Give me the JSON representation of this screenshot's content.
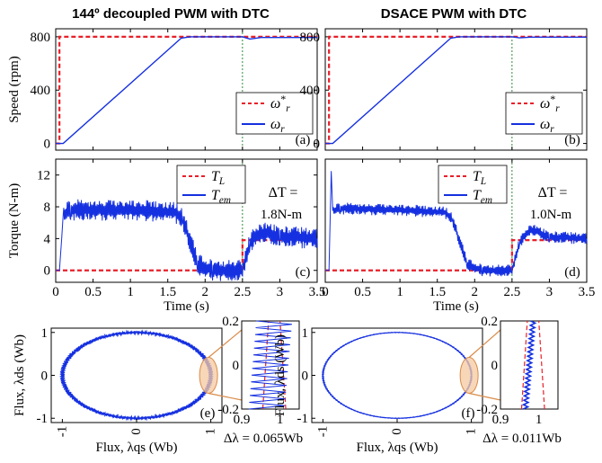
{
  "figure": {
    "left_title": "144º decoupled PWM with DTC",
    "right_title": "DSACE PWM with DTC"
  },
  "chart_data": [
    {
      "id": "speed-left",
      "panel_label": "(a)",
      "type": "line",
      "ylabel": "Speed (rpm)",
      "xlim": [
        0,
        3.5
      ],
      "ylim": [
        -50,
        860
      ],
      "yticks": [
        "0",
        "400",
        "800"
      ],
      "ytick_values": [
        0,
        400,
        800
      ],
      "legend": {
        "position": "bottom-right",
        "entries": [
          "ω*r",
          "ωr"
        ]
      },
      "series": [
        {
          "name": "ω*r",
          "style": "dashed",
          "color": "#e8202a",
          "x": [
            0,
            0.05,
            0.05,
            3.5
          ],
          "y": [
            0,
            0,
            800,
            800
          ]
        },
        {
          "name": "ωr",
          "style": "solid",
          "color": "#1530e0",
          "x": [
            0,
            0.1,
            1.68,
            1.8,
            2.5,
            2.6,
            2.75,
            3.5
          ],
          "y": [
            0,
            0,
            790,
            800,
            800,
            783,
            795,
            795
          ]
        }
      ],
      "vline_x": 2.5
    },
    {
      "id": "speed-right",
      "panel_label": "(b)",
      "type": "line",
      "ylabel": "",
      "xlim": [
        0,
        3.5
      ],
      "ylim": [
        -50,
        860
      ],
      "yticks": [
        "0",
        "400",
        "800"
      ],
      "ytick_values": [
        0,
        400,
        800
      ],
      "legend": {
        "position": "bottom-right",
        "entries": [
          "ω*r",
          "ωr"
        ]
      },
      "series": [
        {
          "name": "ω*r",
          "style": "dashed",
          "color": "#e8202a",
          "x": [
            0,
            0.05,
            0.05,
            3.5
          ],
          "y": [
            0,
            0,
            800,
            800
          ]
        },
        {
          "name": "ωr",
          "style": "solid",
          "color": "#1530e0",
          "x": [
            0,
            0.1,
            1.68,
            1.8,
            2.5,
            2.6,
            2.75,
            3.5
          ],
          "y": [
            0,
            0,
            790,
            800,
            800,
            792,
            797,
            797
          ]
        }
      ],
      "vline_x": 2.5
    },
    {
      "id": "torque-left",
      "panel_label": "(c)",
      "type": "line",
      "ylabel": "Torque (N-m)",
      "xlabel": "Time (s)",
      "xlim": [
        0,
        3.5
      ],
      "ylim": [
        -1.5,
        14
      ],
      "xticks": [
        "0",
        "0.5",
        "1",
        "1.5",
        "2",
        "2.5",
        "3",
        "3.5"
      ],
      "xtick_values": [
        0,
        0.5,
        1,
        1.5,
        2,
        2.5,
        3,
        3.5
      ],
      "yticks": [
        "0",
        "4",
        "8",
        "12"
      ],
      "ytick_values": [
        0,
        4,
        8,
        12
      ],
      "legend": {
        "position": "top-center",
        "entries": [
          "TL",
          "Tem"
        ]
      },
      "annotation": [
        "ΔT =",
        "1.8N-m"
      ],
      "series": [
        {
          "name": "TL",
          "style": "dashed",
          "color": "#e8202a",
          "x": [
            0,
            2.5,
            2.5,
            3.5
          ],
          "y": [
            0,
            0,
            3.8,
            3.8
          ]
        },
        {
          "name": "Tem",
          "style": "solid",
          "color": "#1530e0",
          "x": [
            0,
            0.05,
            0.08,
            0.1,
            0.2,
            1.0,
            1.6,
            1.7,
            1.9,
            2.1,
            2.5,
            2.6,
            2.75,
            3.0,
            3.5
          ],
          "y": [
            0,
            0,
            4,
            7.0,
            7.6,
            7.6,
            7.3,
            6.5,
            0.8,
            0,
            0,
            3.5,
            4.8,
            4.3,
            4.0
          ],
          "band": 1.8
        }
      ],
      "vline_x": 2.5
    },
    {
      "id": "torque-right",
      "panel_label": "(d)",
      "type": "line",
      "ylabel": "",
      "xlabel": "Time (s)",
      "xlim": [
        0,
        3.5
      ],
      "ylim": [
        -1.5,
        14
      ],
      "xticks": [
        "0",
        "0.5",
        "1",
        "1.5",
        "2",
        "2.5",
        "3",
        "3.5"
      ],
      "xtick_values": [
        0,
        0.5,
        1,
        1.5,
        2,
        2.5,
        3,
        3.5
      ],
      "yticks": [],
      "ytick_values": [],
      "legend": {
        "position": "top-center",
        "entries": [
          "TL",
          "Tem"
        ]
      },
      "annotation": [
        "ΔT =",
        "1.0N-m"
      ],
      "series": [
        {
          "name": "TL",
          "style": "dashed",
          "color": "#e8202a",
          "x": [
            0,
            2.5,
            2.5,
            3.5
          ],
          "y": [
            0,
            0,
            3.8,
            3.8
          ]
        },
        {
          "name": "Tem",
          "style": "solid",
          "color": "#1530e0",
          "x": [
            0,
            0.05,
            0.08,
            0.1,
            0.2,
            1.0,
            1.6,
            1.7,
            1.9,
            2.1,
            2.5,
            2.6,
            2.75,
            3.0,
            3.5
          ],
          "y": [
            0,
            0,
            12.5,
            7.5,
            7.8,
            7.6,
            7.3,
            6.5,
            0.8,
            0,
            0,
            3.5,
            5.2,
            4.2,
            4.0
          ],
          "band": 1.0
        }
      ],
      "vline_x": 2.5
    },
    {
      "id": "flux-left",
      "panel_label": "(e)",
      "type": "line",
      "xlabel": "Flux, λqs (Wb)",
      "ylabel": "Flux, λds (Wb)",
      "xlim": [
        -1.15,
        1.15
      ],
      "ylim": [
        -1.1,
        1.1
      ],
      "xticks": [
        "-1",
        "0",
        "1"
      ],
      "yticks": [
        "-1",
        "0",
        "1"
      ],
      "radius": 1.0,
      "ripple": 0.065,
      "zoom": {
        "xlim": [
          0.9,
          1.05
        ],
        "ylim": [
          -0.2,
          0.2
        ],
        "xticks": [
          "0.9",
          "1"
        ],
        "yticks": [
          "0.2",
          "0",
          "-0.2"
        ]
      },
      "caption": "Δλ = 0.065Wb"
    },
    {
      "id": "flux-right",
      "panel_label": "(f)",
      "type": "line",
      "xlabel": "Flux, λqs (Wb)",
      "ylabel": "Flux, λds (Wb)",
      "xlim": [
        -1.15,
        1.15
      ],
      "ylim": [
        -1.1,
        1.1
      ],
      "xticks": [
        "-1",
        "0",
        "1"
      ],
      "yticks": [
        "-1",
        "0",
        "1"
      ],
      "radius": 1.0,
      "ripple": 0.011,
      "zoom": {
        "xlim": [
          0.9,
          1.05
        ],
        "ylim": [
          -0.2,
          0.2
        ],
        "xticks": [
          "0.9",
          "1"
        ],
        "yticks": [
          "0.2",
          "0",
          "-0.2"
        ]
      },
      "caption": "Δλ = 0.011Wb"
    }
  ],
  "colors": {
    "reference": "#e8202a",
    "actual": "#1530e0",
    "marker_line": "#2e8b3a",
    "zoom_fill": "#f5c9a0"
  }
}
